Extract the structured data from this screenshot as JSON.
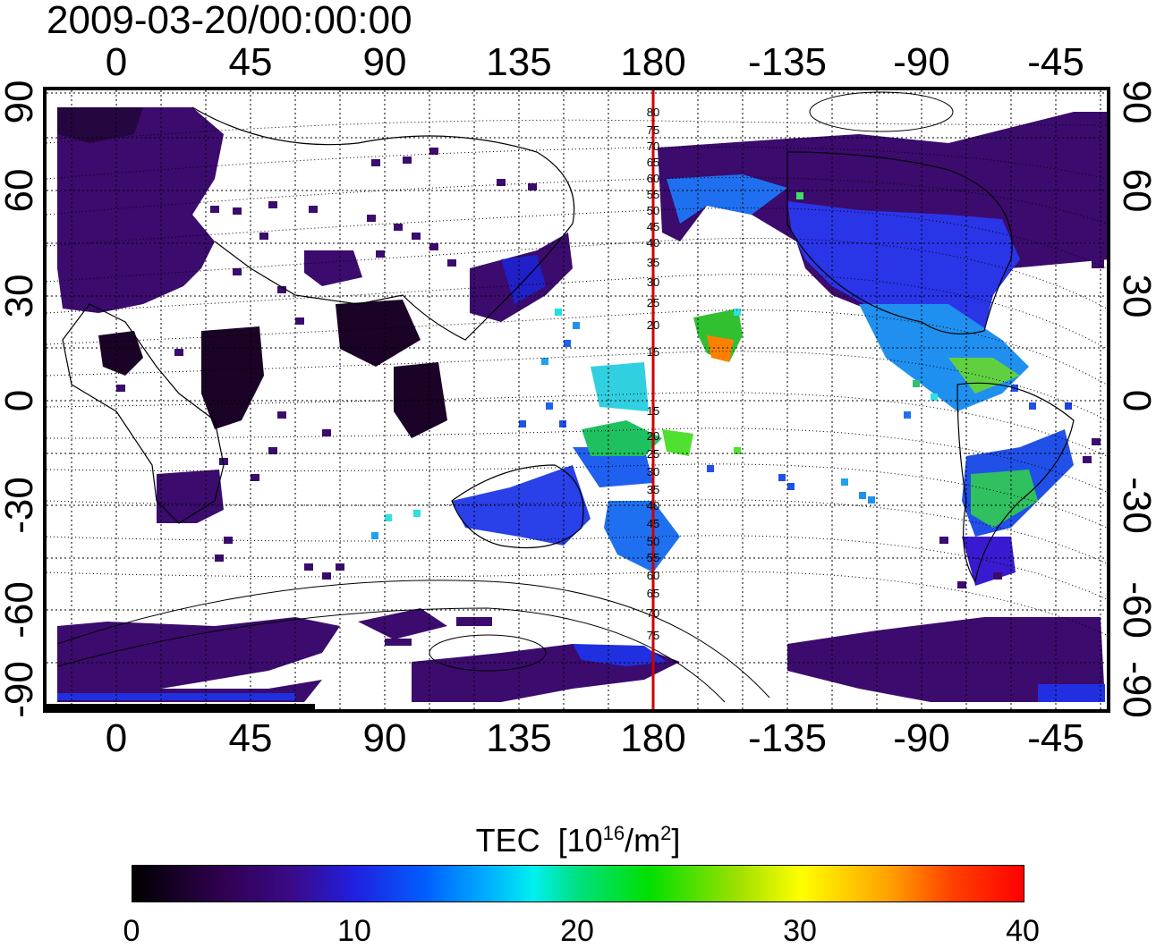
{
  "title": "2009-03-20/00:00:00",
  "top_ticks": [
    "0",
    "45",
    "90",
    "135",
    "180",
    "-135",
    "-90",
    "-45"
  ],
  "bottom_ticks": [
    "0",
    "45",
    "90",
    "135",
    "180",
    "-135",
    "-90",
    "-45"
  ],
  "left_ticks": [
    "90",
    "60",
    "30",
    "0",
    "-30",
    "-60",
    "-90"
  ],
  "right_ticks": [
    "90",
    "60",
    "30",
    "0",
    "-30",
    "-60",
    "-90"
  ],
  "meridian_labels_north": [
    "80",
    "75",
    "70",
    "65",
    "60",
    "55",
    "50",
    "45",
    "40",
    "35",
    "30",
    "25",
    "20",
    "15"
  ],
  "meridian_labels_south": [
    "15",
    "20",
    "25",
    "30",
    "35",
    "40",
    "45",
    "50",
    "55",
    "60",
    "65",
    "70",
    "75"
  ],
  "colorbar": {
    "title": "TEC",
    "unit_prefix": "[10",
    "unit_exp": "16",
    "unit_mid": "/m",
    "unit_exp2": "2",
    "unit_suffix": "]",
    "ticks": [
      "0",
      "10",
      "20",
      "30",
      "40"
    ],
    "min": 0,
    "max": 40
  },
  "colors": {
    "meridian_line": "#cc0000",
    "land_low": "#3a0a6a",
    "land_mid": "#2a30e0"
  }
}
